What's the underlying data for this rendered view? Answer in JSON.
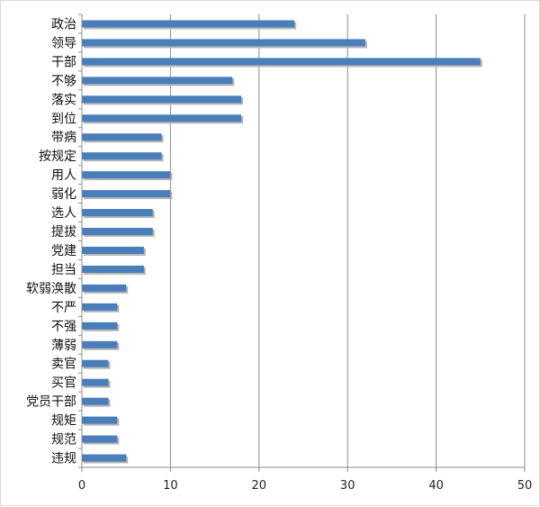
{
  "chart_data": {
    "type": "bar",
    "orientation": "horizontal",
    "title": "",
    "xlabel": "",
    "ylabel": "",
    "categories": [
      "政治",
      "领导",
      "干部",
      "不够",
      "落实",
      "到位",
      "带病",
      "按规定",
      "用人",
      "弱化",
      "选人",
      "提拔",
      "党建",
      "担当",
      "软弱涣散",
      "不严",
      "不强",
      "薄弱",
      "卖官",
      "买官",
      "党员干部",
      "规矩",
      "规范",
      "违规"
    ],
    "values": [
      24,
      32,
      45,
      17,
      18,
      18,
      9,
      9,
      10,
      10,
      8,
      8,
      7,
      7,
      5,
      4,
      4,
      4,
      3,
      3,
      3,
      4,
      4,
      5
    ],
    "xlim": [
      0,
      50
    ],
    "xticks": [
      "0",
      "10",
      "20",
      "30",
      "40",
      "50"
    ],
    "grid": true,
    "legend": "none",
    "colors": {
      "bar": "#4a7ebb",
      "bar_shadow": "#b5b5b5",
      "grid": "#8c8c8c",
      "axis": "#8c8c8c"
    }
  }
}
